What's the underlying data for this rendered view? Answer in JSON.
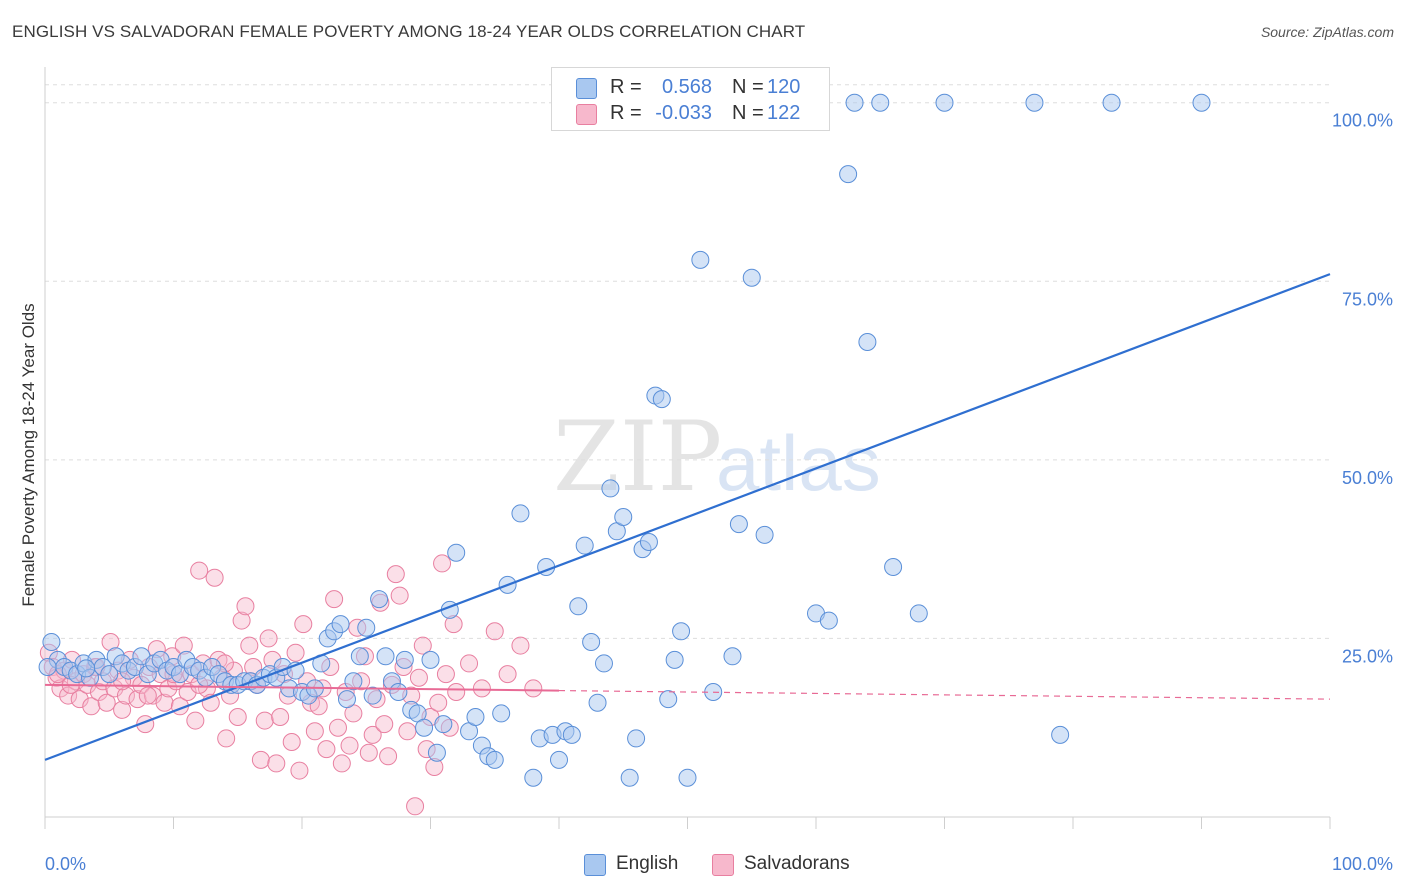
{
  "header": {
    "title": "ENGLISH VS SALVADORAN FEMALE POVERTY AMONG 18-24 YEAR OLDS CORRELATION CHART",
    "source": "Source: ZipAtlas.com"
  },
  "legend_top": {
    "rows": [
      {
        "r_label": "R =",
        "r_value": "0.568",
        "n_label": "N =",
        "n_value": "120",
        "color": "#a9c8f0"
      },
      {
        "r_label": "R =",
        "r_value": "-0.033",
        "n_label": "N =",
        "n_value": "122",
        "color": "#f7b8cc"
      }
    ]
  },
  "legend_bottom": {
    "items": [
      {
        "label": "English",
        "color": "#a9c8f0"
      },
      {
        "label": "Salvadorans",
        "color": "#f7b8cc"
      }
    ]
  },
  "watermark": {
    "zip": "ZIP",
    "atlas": "atlas"
  },
  "colors": {
    "english_fill": "#a9c8f0",
    "english_stroke": "#5a8fd8",
    "english_line": "#2f6fd0",
    "salv_fill": "#f7b8cc",
    "salv_stroke": "#e87fa0",
    "salv_line": "#e86a95",
    "axis_text": "#4a7fd4",
    "grid": "#dddddd"
  },
  "chart_data": {
    "type": "scatter",
    "title": "ENGLISH VS SALVADORAN FEMALE POVERTY AMONG 18-24 YEAR OLDS CORRELATION CHART",
    "xlabel": "",
    "ylabel": "Female Poverty Among 18-24 Year Olds",
    "xlim": [
      0,
      100
    ],
    "ylim": [
      0,
      105
    ],
    "x_tick_labels": [
      "0.0%",
      "100.0%"
    ],
    "y_ticks": [
      25,
      50,
      75,
      100
    ],
    "y_tick_labels": [
      "25.0%",
      "50.0%",
      "75.0%",
      "100.0%"
    ],
    "grid": true,
    "series": [
      {
        "name": "English",
        "r": 0.568,
        "n": 120,
        "trend": {
          "x": [
            0,
            100
          ],
          "y": [
            8.0,
            76.0
          ]
        },
        "points": [
          [
            0.5,
            24.5
          ],
          [
            1,
            22
          ],
          [
            1.5,
            21
          ],
          [
            2,
            20.5
          ],
          [
            2.5,
            20
          ],
          [
            3,
            21.5
          ],
          [
            3.5,
            19.5
          ],
          [
            4,
            22
          ],
          [
            4.5,
            21
          ],
          [
            5,
            20
          ],
          [
            5.5,
            22.5
          ],
          [
            6,
            21.5
          ],
          [
            6.5,
            20.5
          ],
          [
            7,
            21
          ],
          [
            7.5,
            22.5
          ],
          [
            8,
            20
          ],
          [
            8.5,
            21.5
          ],
          [
            9,
            22
          ],
          [
            9.5,
            20.5
          ],
          [
            10,
            21
          ],
          [
            10.5,
            20
          ],
          [
            11,
            22
          ],
          [
            11.5,
            21
          ],
          [
            12,
            20.5
          ],
          [
            12.5,
            19.5
          ],
          [
            13,
            21
          ],
          [
            13.5,
            20
          ],
          [
            14,
            19
          ],
          [
            14.5,
            18.5
          ],
          [
            15,
            18.5
          ],
          [
            15.5,
            19
          ],
          [
            16,
            19
          ],
          [
            16.5,
            18.5
          ],
          [
            17,
            19.5
          ],
          [
            17.5,
            20
          ],
          [
            18,
            19.5
          ],
          [
            18.5,
            21
          ],
          [
            19,
            18
          ],
          [
            19.5,
            20.5
          ],
          [
            20,
            17.5
          ],
          [
            20.5,
            17
          ],
          [
            21,
            18
          ],
          [
            21.5,
            21.5
          ],
          [
            22,
            25
          ],
          [
            22.5,
            26
          ],
          [
            23,
            27
          ],
          [
            23.5,
            16.5
          ],
          [
            24,
            19
          ],
          [
            24.5,
            22.5
          ],
          [
            25,
            26.5
          ],
          [
            25.5,
            17
          ],
          [
            26,
            30.5
          ],
          [
            26.5,
            22.5
          ],
          [
            27,
            19
          ],
          [
            27.5,
            17.5
          ],
          [
            28,
            22
          ],
          [
            28.5,
            15
          ],
          [
            29,
            14.5
          ],
          [
            29.5,
            12.5
          ],
          [
            30,
            22
          ],
          [
            30.5,
            9
          ],
          [
            31,
            13
          ],
          [
            31.5,
            29
          ],
          [
            32,
            37
          ],
          [
            33,
            12
          ],
          [
            33.5,
            14
          ],
          [
            34,
            10
          ],
          [
            34.5,
            8.5
          ],
          [
            35,
            8
          ],
          [
            35.5,
            14.5
          ],
          [
            36,
            32.5
          ],
          [
            37,
            42.5
          ],
          [
            38,
            5.5
          ],
          [
            38.5,
            11
          ],
          [
            39,
            35
          ],
          [
            39.5,
            11.5
          ],
          [
            40,
            8
          ],
          [
            40.5,
            12
          ],
          [
            41,
            11.5
          ],
          [
            41.5,
            29.5
          ],
          [
            42,
            38
          ],
          [
            42.5,
            24.5
          ],
          [
            43,
            16
          ],
          [
            43.5,
            21.5
          ],
          [
            44,
            46
          ],
          [
            44.5,
            40
          ],
          [
            45,
            42
          ],
          [
            45.5,
            5.5
          ],
          [
            46,
            11
          ],
          [
            46.5,
            37.5
          ],
          [
            47,
            38.5
          ],
          [
            47.5,
            59
          ],
          [
            48,
            58.5
          ],
          [
            48.5,
            16.5
          ],
          [
            49,
            22
          ],
          [
            49.5,
            26
          ],
          [
            50,
            5.5
          ],
          [
            51,
            78
          ],
          [
            52,
            17.5
          ],
          [
            53.5,
            22.5
          ],
          [
            54,
            41
          ],
          [
            55,
            75.5
          ],
          [
            56,
            39.5
          ],
          [
            58,
            100
          ],
          [
            59,
            100
          ],
          [
            60,
            28.5
          ],
          [
            61,
            27.5
          ],
          [
            62.5,
            90
          ],
          [
            63,
            100
          ],
          [
            64,
            66.5
          ],
          [
            65,
            100
          ],
          [
            66,
            35
          ],
          [
            68,
            28.5
          ],
          [
            70,
            100
          ],
          [
            77,
            100
          ],
          [
            79,
            11.5
          ],
          [
            83,
            100
          ],
          [
            90,
            100
          ],
          [
            0.2,
            21
          ],
          [
            3.2,
            20.8
          ]
        ]
      },
      {
        "name": "Salvadorans",
        "r": -0.033,
        "n": 122,
        "trend": {
          "x": [
            0,
            100
          ],
          "y": [
            18.5,
            16.5
          ]
        },
        "points": [
          [
            0.3,
            23
          ],
          [
            0.6,
            21
          ],
          [
            0.9,
            19.5
          ],
          [
            1.2,
            18
          ],
          [
            1.5,
            20.5
          ],
          [
            1.8,
            17
          ],
          [
            2.1,
            22
          ],
          [
            2.4,
            19
          ],
          [
            2.7,
            16.5
          ],
          [
            3,
            20
          ],
          [
            3.3,
            18.5
          ],
          [
            3.6,
            15.5
          ],
          [
            3.9,
            21
          ],
          [
            4.2,
            17.5
          ],
          [
            4.5,
            19
          ],
          [
            4.8,
            16
          ],
          [
            5.1,
            24.5
          ],
          [
            5.4,
            18
          ],
          [
            5.7,
            20.5
          ],
          [
            6,
            15
          ],
          [
            6.3,
            17
          ],
          [
            6.6,
            22
          ],
          [
            6.9,
            19.5
          ],
          [
            7.2,
            16.5
          ],
          [
            7.5,
            18.5
          ],
          [
            7.8,
            13
          ],
          [
            8.1,
            21
          ],
          [
            8.4,
            17
          ],
          [
            8.7,
            23.5
          ],
          [
            9,
            20
          ],
          [
            9.3,
            16
          ],
          [
            9.6,
            18
          ],
          [
            9.9,
            22.5
          ],
          [
            10.2,
            19
          ],
          [
            10.5,
            15.5
          ],
          [
            10.8,
            24
          ],
          [
            11.1,
            17.5
          ],
          [
            11.4,
            20
          ],
          [
            11.7,
            13.5
          ],
          [
            12,
            34.5
          ],
          [
            12.3,
            21.5
          ],
          [
            12.6,
            18
          ],
          [
            12.9,
            16
          ],
          [
            13.2,
            33.5
          ],
          [
            13.5,
            22
          ],
          [
            13.8,
            19.5
          ],
          [
            14.1,
            11
          ],
          [
            14.4,
            17
          ],
          [
            14.7,
            20.5
          ],
          [
            15,
            14
          ],
          [
            15.3,
            27.5
          ],
          [
            15.6,
            29.5
          ],
          [
            15.9,
            24
          ],
          [
            16.2,
            21
          ],
          [
            16.5,
            18.5
          ],
          [
            16.8,
            8
          ],
          [
            17.1,
            13.5
          ],
          [
            17.4,
            25
          ],
          [
            17.7,
            22
          ],
          [
            18,
            7.5
          ],
          [
            18.3,
            14
          ],
          [
            18.6,
            20
          ],
          [
            18.9,
            17
          ],
          [
            19.2,
            10.5
          ],
          [
            19.5,
            23
          ],
          [
            19.8,
            6.5
          ],
          [
            20.1,
            27
          ],
          [
            20.4,
            19
          ],
          [
            20.7,
            16
          ],
          [
            21,
            12
          ],
          [
            21.3,
            15.5
          ],
          [
            21.6,
            18
          ],
          [
            21.9,
            9.5
          ],
          [
            22.2,
            21
          ],
          [
            22.5,
            30.5
          ],
          [
            22.8,
            12.5
          ],
          [
            23.1,
            7.5
          ],
          [
            23.4,
            17.5
          ],
          [
            23.7,
            10
          ],
          [
            24,
            14.5
          ],
          [
            24.3,
            26.5
          ],
          [
            24.6,
            19
          ],
          [
            24.9,
            22.5
          ],
          [
            25.2,
            9
          ],
          [
            25.5,
            11.5
          ],
          [
            25.8,
            16.5
          ],
          [
            26.1,
            30
          ],
          [
            26.4,
            13
          ],
          [
            26.7,
            8.5
          ],
          [
            27,
            18.5
          ],
          [
            27.3,
            34
          ],
          [
            27.6,
            31
          ],
          [
            27.9,
            21
          ],
          [
            28.2,
            12
          ],
          [
            28.5,
            17
          ],
          [
            28.8,
            1.5
          ],
          [
            29.1,
            19.5
          ],
          [
            29.4,
            24
          ],
          [
            29.7,
            9.5
          ],
          [
            30,
            14
          ],
          [
            30.3,
            7
          ],
          [
            30.6,
            16
          ],
          [
            30.9,
            35.5
          ],
          [
            31.2,
            20
          ],
          [
            31.5,
            12.5
          ],
          [
            31.8,
            27
          ],
          [
            32,
            17.5
          ],
          [
            33,
            21.5
          ],
          [
            34,
            18
          ],
          [
            35,
            26
          ],
          [
            36,
            20
          ],
          [
            37,
            24
          ],
          [
            38,
            18
          ],
          [
            1,
            20
          ],
          [
            2,
            18.5
          ],
          [
            4,
            21
          ],
          [
            6,
            19
          ],
          [
            8,
            17
          ],
          [
            10,
            20
          ],
          [
            12,
            18.5
          ],
          [
            14,
            21.5
          ],
          [
            16,
            19
          ]
        ]
      }
    ]
  }
}
